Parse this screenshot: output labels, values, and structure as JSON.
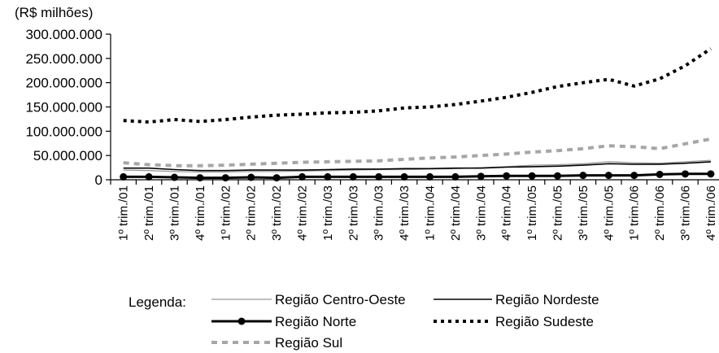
{
  "chart_data": {
    "type": "line",
    "unit_label": "(R$ milhões)",
    "title": "",
    "xlabel": "",
    "ylabel": "",
    "ylim": [
      0,
      300000000
    ],
    "yticks": [
      0,
      50000000,
      100000000,
      150000000,
      200000000,
      250000000,
      300000000
    ],
    "ytick_labels": [
      "0",
      "50.000.000",
      "100.000.000",
      "150.000.000",
      "200.000.000",
      "250.000.000",
      "300.000.000"
    ],
    "grid": false,
    "legend_position": "bottom",
    "legend_title": "Legenda:",
    "categories": [
      "1º trim./01",
      "2º trim./01",
      "3º trim./01",
      "4º trim./01",
      "1º trim./02",
      "2º trim./02",
      "3º trim./02",
      "4º trim./02",
      "1º trim./03",
      "2º trim./03",
      "3º trim./03",
      "4º trim./03",
      "1º trim./04",
      "2º trim./04",
      "3º trim./04",
      "4º trim./04",
      "1º trim./05",
      "2º trim./05",
      "3º trim./05",
      "4º trim./05",
      "1º trim./06",
      "2º trim./06",
      "3º trim./06",
      "4º trim./06"
    ],
    "series": [
      {
        "name": "Região Centro-Oeste",
        "style": "thin-solid",
        "color": "#999999",
        "values": [
          20000000,
          19000000,
          17000000,
          16000000,
          16000000,
          17000000,
          17000000,
          18000000,
          19000000,
          20000000,
          21000000,
          21000000,
          22000000,
          23000000,
          25000000,
          27000000,
          30000000,
          31000000,
          33000000,
          37000000,
          35000000,
          34000000,
          37000000,
          40000000
        ]
      },
      {
        "name": "Região Nordeste",
        "style": "solid",
        "color": "#000000",
        "values": [
          24000000,
          24000000,
          21000000,
          19000000,
          19000000,
          20000000,
          20000000,
          20000000,
          21000000,
          22000000,
          22000000,
          23000000,
          23000000,
          24000000,
          24000000,
          26000000,
          27000000,
          28000000,
          30000000,
          33000000,
          32000000,
          32000000,
          34000000,
          37000000
        ]
      },
      {
        "name": "Região Norte",
        "style": "thick-markers",
        "color": "#000000",
        "values": [
          6000000,
          6000000,
          5000000,
          4000000,
          4000000,
          5000000,
          4000000,
          6000000,
          6000000,
          6000000,
          6000000,
          6000000,
          6000000,
          6000000,
          7000000,
          8000000,
          8000000,
          8000000,
          9000000,
          9000000,
          9000000,
          11000000,
          12000000,
          12000000
        ]
      },
      {
        "name": "Região Sudeste",
        "style": "thick-dotted",
        "color": "#000000",
        "values": [
          122000000,
          119000000,
          124000000,
          120000000,
          124000000,
          129000000,
          133000000,
          135000000,
          138000000,
          139000000,
          142000000,
          148000000,
          150000000,
          155000000,
          162000000,
          170000000,
          180000000,
          192000000,
          200000000,
          207000000,
          193000000,
          208000000,
          235000000,
          270000000
        ]
      },
      {
        "name": "Região Sul",
        "style": "gray-dashed",
        "color": "#a6a6a6",
        "values": [
          35000000,
          31000000,
          29000000,
          29000000,
          30000000,
          32000000,
          34000000,
          36000000,
          37000000,
          38000000,
          39000000,
          42000000,
          45000000,
          47000000,
          50000000,
          53000000,
          57000000,
          60000000,
          64000000,
          70000000,
          68000000,
          64000000,
          74000000,
          84000000
        ]
      }
    ]
  }
}
